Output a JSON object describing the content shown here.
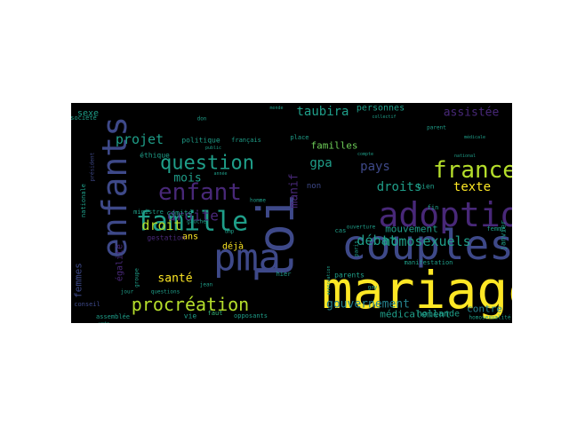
{
  "word_cloud": {
    "background": "#000000",
    "palette": {
      "yellow": "#fde725",
      "lime": "#b5de2b",
      "green": "#6ece58",
      "mint": "#35b779",
      "teal": "#1f9e89",
      "cyan": "#26828e",
      "steel": "#31688e",
      "indigo": "#3e4989",
      "violet": "#482878",
      "purple": "#440154"
    },
    "words": [
      {
        "text": "mariage",
        "color": "yellow"
      },
      {
        "text": "couples",
        "color": "indigo"
      },
      {
        "text": "loi",
        "color": "indigo"
      },
      {
        "text": "adoption",
        "color": "violet"
      },
      {
        "text": "pma",
        "color": "indigo"
      },
      {
        "text": "enfants",
        "color": "indigo"
      },
      {
        "text": "famille",
        "color": "teal"
      },
      {
        "text": "enfant",
        "color": "violet"
      },
      {
        "text": "france",
        "color": "lime"
      },
      {
        "text": "question",
        "color": "teal"
      },
      {
        "text": "procréation",
        "color": "lime"
      },
      {
        "text": "droite",
        "color": "violet"
      },
      {
        "text": "homosexuels",
        "color": "teal"
      },
      {
        "text": "débat",
        "color": "teal"
      },
      {
        "text": "gouvernement",
        "color": "cyan"
      },
      {
        "text": "droit",
        "color": "lime"
      },
      {
        "text": "projet",
        "color": "teal"
      },
      {
        "text": "taubira",
        "color": "teal"
      },
      {
        "text": "assistée",
        "color": "violet"
      },
      {
        "text": "texte",
        "color": "yellow"
      },
      {
        "text": "droits",
        "color": "teal"
      },
      {
        "text": "pays",
        "color": "indigo"
      },
      {
        "text": "gpa",
        "color": "teal"
      },
      {
        "text": "manif",
        "color": "violet"
      },
      {
        "text": "mois",
        "color": "teal"
      },
      {
        "text": "santé",
        "color": "yellow"
      },
      {
        "text": "médicalement",
        "color": "teal"
      },
      {
        "text": "femmes",
        "color": "indigo"
      },
      {
        "text": "mouvement",
        "color": "teal"
      },
      {
        "text": "familles",
        "color": "green"
      },
      {
        "text": "personnes",
        "color": "teal"
      },
      {
        "text": "contre",
        "color": "cyan"
      },
      {
        "text": "hollande",
        "color": "teal"
      },
      {
        "text": "ans",
        "color": "yellow"
      },
      {
        "text": "déjà",
        "color": "yellow"
      },
      {
        "text": "sexe",
        "color": "teal"
      },
      {
        "text": "égalité",
        "color": "violet"
      },
      {
        "text": "non",
        "color": "indigo"
      },
      {
        "text": "politique",
        "color": "teal"
      },
      {
        "text": "éthique",
        "color": "teal"
      },
      {
        "text": "français",
        "color": "teal"
      },
      {
        "text": "comité",
        "color": "teal"
      },
      {
        "text": "gauche",
        "color": "teal"
      },
      {
        "text": "ministre",
        "color": "teal"
      },
      {
        "text": "nationale",
        "color": "teal"
      },
      {
        "text": "assemblée",
        "color": "teal"
      },
      {
        "text": "conseil",
        "color": "indigo"
      },
      {
        "text": "vie",
        "color": "teal"
      },
      {
        "text": "faut",
        "color": "mint"
      },
      {
        "text": "opposants",
        "color": "teal"
      },
      {
        "text": "questions",
        "color": "teal"
      },
      {
        "text": "jour",
        "color": "teal"
      },
      {
        "text": "gestation",
        "color": "violet"
      },
      {
        "text": "société",
        "color": "teal"
      },
      {
        "text": "président",
        "color": "indigo"
      },
      {
        "text": "homme",
        "color": "teal"
      },
      {
        "text": "ump",
        "color": "teal"
      },
      {
        "text": "hier",
        "color": "teal"
      },
      {
        "text": "cas",
        "color": "teal"
      },
      {
        "text": "ouverture",
        "color": "teal"
      },
      {
        "text": "parents",
        "color": "teal"
      },
      {
        "text": "manifestation",
        "color": "teal"
      },
      {
        "text": "janvier",
        "color": "teal"
      },
      {
        "text": "femme",
        "color": "teal"
      },
      {
        "text": "fin",
        "color": "teal"
      },
      {
        "text": "bien",
        "color": "teal"
      },
      {
        "text": "gay",
        "color": "teal"
      },
      {
        "text": "homosexualité",
        "color": "teal"
      },
      {
        "text": "paris",
        "color": "teal"
      },
      {
        "text": "place",
        "color": "teal"
      },
      {
        "text": "monde",
        "color": "teal"
      },
      {
        "text": "jean",
        "color": "teal"
      },
      {
        "text": "groupe",
        "color": "teal"
      },
      {
        "text": "association",
        "color": "teal"
      },
      {
        "text": "année",
        "color": "teal"
      },
      {
        "text": "don",
        "color": "teal"
      },
      {
        "text": "collectif",
        "color": "teal"
      },
      {
        "text": "parent",
        "color": "teal"
      },
      {
        "text": "médicale",
        "color": "teal"
      },
      {
        "text": "national",
        "color": "teal"
      },
      {
        "text": "public",
        "color": "teal"
      },
      {
        "text": "compte",
        "color": "teal"
      },
      {
        "text": "vote",
        "color": "teal"
      }
    ]
  }
}
